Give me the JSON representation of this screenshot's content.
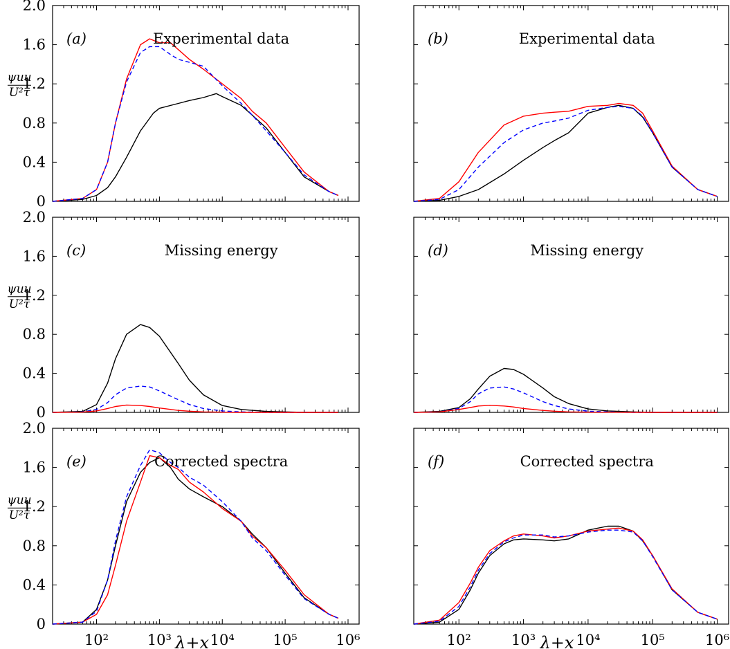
{
  "colors": {
    "black": "#000000",
    "red": "#ff0000",
    "blue": "#0000ff"
  },
  "chart_data": [
    {
      "type": "line",
      "panel": "(a)",
      "title": "Experimental data",
      "xscale": "log",
      "xlim": [
        20,
        1500000
      ],
      "ylim": [
        0,
        2.0
      ],
      "yticks": [
        "0",
        "0.4",
        "0.8",
        "1.2",
        "1.6",
        "2.0"
      ],
      "ylabel": [
        "ψuu",
        "U²τ"
      ],
      "series": [
        {
          "color": "black",
          "style": "solid",
          "x": [
            20,
            60,
            100,
            150,
            200,
            300,
            500,
            800,
            1000,
            2000,
            3000,
            5000,
            8000,
            10000,
            20000,
            30000,
            50000,
            100000,
            200000,
            500000,
            700000
          ],
          "y": [
            0,
            0.02,
            0.06,
            0.14,
            0.25,
            0.45,
            0.72,
            0.9,
            0.95,
            1.0,
            1.03,
            1.06,
            1.1,
            1.07,
            0.98,
            0.88,
            0.75,
            0.5,
            0.25,
            0.1,
            0.06
          ]
        },
        {
          "color": "red",
          "style": "solid",
          "x": [
            20,
            60,
            100,
            150,
            200,
            300,
            500,
            700,
            1000,
            1500,
            2000,
            3000,
            5000,
            10000,
            20000,
            30000,
            50000,
            100000,
            200000,
            500000,
            700000
          ],
          "y": [
            0,
            0.03,
            0.12,
            0.4,
            0.8,
            1.25,
            1.6,
            1.66,
            1.62,
            1.62,
            1.55,
            1.45,
            1.35,
            1.2,
            1.05,
            0.92,
            0.8,
            0.55,
            0.3,
            0.1,
            0.06
          ]
        },
        {
          "color": "blue",
          "style": "dashed",
          "x": [
            20,
            60,
            100,
            150,
            200,
            300,
            500,
            700,
            1000,
            1500,
            2000,
            3000,
            5000,
            10000,
            20000,
            30000,
            50000,
            100000,
            200000,
            500000,
            700000
          ],
          "y": [
            0,
            0.03,
            0.12,
            0.4,
            0.8,
            1.22,
            1.52,
            1.58,
            1.58,
            1.5,
            1.45,
            1.42,
            1.38,
            1.18,
            1.0,
            0.88,
            0.72,
            0.5,
            0.27,
            0.1,
            0.06
          ]
        }
      ]
    },
    {
      "type": "line",
      "panel": "(b)",
      "title": "Experimental data",
      "xscale": "log",
      "xlim": [
        20,
        1500000
      ],
      "ylim": [
        0,
        2.0
      ],
      "series": [
        {
          "color": "black",
          "style": "solid",
          "x": [
            20,
            50,
            100,
            200,
            500,
            1000,
            2000,
            3000,
            5000,
            10000,
            20000,
            30000,
            50000,
            70000,
            100000,
            200000,
            500000,
            1000000
          ],
          "y": [
            0,
            0.01,
            0.05,
            0.12,
            0.28,
            0.42,
            0.55,
            0.62,
            0.7,
            0.9,
            0.96,
            0.98,
            0.95,
            0.86,
            0.7,
            0.35,
            0.12,
            0.05
          ]
        },
        {
          "color": "red",
          "style": "solid",
          "x": [
            20,
            50,
            100,
            200,
            500,
            1000,
            2000,
            3000,
            5000,
            10000,
            20000,
            30000,
            50000,
            70000,
            100000,
            200000,
            500000,
            1000000
          ],
          "y": [
            0,
            0.03,
            0.2,
            0.5,
            0.78,
            0.87,
            0.9,
            0.91,
            0.92,
            0.97,
            0.98,
            1.0,
            0.98,
            0.9,
            0.72,
            0.36,
            0.12,
            0.05
          ]
        },
        {
          "color": "blue",
          "style": "dashed",
          "x": [
            20,
            50,
            100,
            200,
            500,
            1000,
            2000,
            3000,
            5000,
            10000,
            20000,
            30000,
            50000,
            70000,
            100000,
            200000,
            500000,
            1000000
          ],
          "y": [
            0,
            0.02,
            0.12,
            0.35,
            0.6,
            0.73,
            0.8,
            0.82,
            0.85,
            0.93,
            0.96,
            0.97,
            0.95,
            0.87,
            0.7,
            0.35,
            0.12,
            0.05
          ]
        }
      ]
    },
    {
      "type": "line",
      "panel": "(c)",
      "title": "Missing energy",
      "xscale": "log",
      "xlim": [
        20,
        1500000
      ],
      "ylim": [
        0,
        2.0
      ],
      "yticks": [
        "0",
        "0.4",
        "0.8",
        "1.2",
        "1.6",
        "2.0"
      ],
      "ylabel": [
        "ψuu",
        "U²τ"
      ],
      "series": [
        {
          "color": "black",
          "style": "solid",
          "x": [
            20,
            60,
            100,
            150,
            200,
            300,
            500,
            700,
            1000,
            2000,
            3000,
            5000,
            10000,
            20000,
            50000,
            100000,
            200000,
            700000
          ],
          "y": [
            0,
            0.01,
            0.08,
            0.3,
            0.55,
            0.8,
            0.9,
            0.87,
            0.78,
            0.5,
            0.33,
            0.18,
            0.07,
            0.03,
            0.01,
            0.005,
            0,
            0
          ]
        },
        {
          "color": "blue",
          "style": "dashed",
          "x": [
            20,
            60,
            100,
            150,
            200,
            300,
            500,
            700,
            1000,
            2000,
            3000,
            5000,
            10000,
            20000,
            50000,
            100000,
            700000
          ],
          "y": [
            0,
            0.005,
            0.03,
            0.1,
            0.18,
            0.25,
            0.27,
            0.26,
            0.22,
            0.13,
            0.08,
            0.04,
            0.015,
            0.005,
            0,
            0,
            0
          ]
        },
        {
          "color": "red",
          "style": "solid",
          "x": [
            20,
            60,
            100,
            150,
            200,
            300,
            500,
            700,
            1000,
            2000,
            3000,
            5000,
            10000,
            20000,
            100000,
            700000
          ],
          "y": [
            0,
            0.003,
            0.015,
            0.04,
            0.06,
            0.075,
            0.07,
            0.06,
            0.045,
            0.02,
            0.012,
            0.005,
            0.002,
            0,
            0,
            0
          ]
        }
      ]
    },
    {
      "type": "line",
      "panel": "(d)",
      "title": "Missing energy",
      "xscale": "log",
      "xlim": [
        20,
        1500000
      ],
      "ylim": [
        0,
        2.0
      ],
      "series": [
        {
          "color": "black",
          "style": "solid",
          "x": [
            20,
            50,
            100,
            150,
            200,
            300,
            500,
            700,
            1000,
            2000,
            3000,
            5000,
            10000,
            20000,
            50000,
            100000,
            1000000
          ],
          "y": [
            0,
            0.01,
            0.05,
            0.14,
            0.24,
            0.37,
            0.45,
            0.44,
            0.39,
            0.25,
            0.16,
            0.09,
            0.035,
            0.015,
            0.005,
            0,
            0
          ]
        },
        {
          "color": "blue",
          "style": "dashed",
          "x": [
            20,
            50,
            100,
            150,
            200,
            300,
            500,
            700,
            1000,
            2000,
            3000,
            5000,
            10000,
            20000,
            50000,
            100000,
            1000000
          ],
          "y": [
            0,
            0.005,
            0.04,
            0.11,
            0.19,
            0.25,
            0.26,
            0.24,
            0.2,
            0.11,
            0.07,
            0.035,
            0.012,
            0.005,
            0,
            0,
            0
          ]
        },
        {
          "color": "red",
          "style": "solid",
          "x": [
            20,
            50,
            100,
            150,
            200,
            300,
            500,
            700,
            1000,
            2000,
            3000,
            5000,
            10000,
            100000,
            1000000
          ],
          "y": [
            0,
            0.005,
            0.03,
            0.05,
            0.065,
            0.072,
            0.065,
            0.055,
            0.04,
            0.02,
            0.012,
            0.005,
            0.002,
            0,
            0
          ]
        }
      ]
    },
    {
      "type": "line",
      "panel": "(e)",
      "title": "Corrected spectra",
      "xscale": "log",
      "xlim": [
        20,
        1500000
      ],
      "ylim": [
        0,
        2.0
      ],
      "yticks": [
        "0",
        "0.4",
        "0.8",
        "1.2",
        "1.6",
        "2.0"
      ],
      "ylabel": [
        "ψuu",
        "U²τ"
      ],
      "xticks": [
        "10²",
        "10³",
        "10⁴",
        "10⁵",
        "10⁶"
      ],
      "xlabel": "λ+x",
      "series": [
        {
          "color": "black",
          "style": "solid",
          "x": [
            20,
            60,
            100,
            150,
            200,
            300,
            500,
            700,
            1000,
            1500,
            2000,
            3000,
            5000,
            10000,
            20000,
            30000,
            50000,
            100000,
            200000,
            500000,
            700000
          ],
          "y": [
            0,
            0.02,
            0.15,
            0.45,
            0.8,
            1.25,
            1.55,
            1.65,
            1.7,
            1.6,
            1.48,
            1.38,
            1.3,
            1.2,
            1.05,
            0.92,
            0.78,
            0.52,
            0.27,
            0.1,
            0.06
          ]
        },
        {
          "color": "red",
          "style": "solid",
          "x": [
            20,
            60,
            100,
            150,
            200,
            300,
            500,
            700,
            1000,
            1500,
            2000,
            3000,
            5000,
            10000,
            20000,
            30000,
            50000,
            100000,
            200000,
            500000,
            700000
          ],
          "y": [
            0,
            0.02,
            0.1,
            0.3,
            0.6,
            1.05,
            1.45,
            1.72,
            1.7,
            1.62,
            1.58,
            1.45,
            1.35,
            1.18,
            1.05,
            0.9,
            0.78,
            0.55,
            0.3,
            0.1,
            0.06
          ]
        },
        {
          "color": "blue",
          "style": "dashed",
          "x": [
            20,
            60,
            100,
            150,
            200,
            300,
            500,
            700,
            1000,
            1500,
            2000,
            3000,
            5000,
            10000,
            20000,
            30000,
            50000,
            100000,
            200000,
            500000,
            700000
          ],
          "y": [
            0,
            0.02,
            0.13,
            0.45,
            0.85,
            1.3,
            1.62,
            1.78,
            1.75,
            1.65,
            1.6,
            1.5,
            1.42,
            1.25,
            1.05,
            0.88,
            0.75,
            0.5,
            0.26,
            0.1,
            0.06
          ]
        }
      ]
    },
    {
      "type": "line",
      "panel": "(f)",
      "title": "Corrected spectra",
      "xscale": "log",
      "xlim": [
        20,
        1500000
      ],
      "ylim": [
        0,
        2.0
      ],
      "xticks": [
        "10²",
        "10³",
        "10⁴",
        "10⁵",
        "10⁶"
      ],
      "xlabel": "λ+x",
      "series": [
        {
          "color": "black",
          "style": "solid",
          "x": [
            20,
            50,
            100,
            150,
            200,
            300,
            500,
            700,
            1000,
            2000,
            3000,
            5000,
            10000,
            20000,
            30000,
            50000,
            70000,
            100000,
            200000,
            500000,
            1000000
          ],
          "y": [
            0,
            0.02,
            0.15,
            0.35,
            0.52,
            0.7,
            0.82,
            0.86,
            0.87,
            0.86,
            0.85,
            0.87,
            0.96,
            1.0,
            1.0,
            0.95,
            0.85,
            0.7,
            0.35,
            0.12,
            0.05
          ]
        },
        {
          "color": "red",
          "style": "solid",
          "x": [
            20,
            50,
            100,
            150,
            200,
            300,
            500,
            700,
            1000,
            2000,
            3000,
            5000,
            10000,
            20000,
            30000,
            50000,
            70000,
            100000,
            200000,
            500000,
            1000000
          ],
          "y": [
            0,
            0.04,
            0.22,
            0.42,
            0.58,
            0.75,
            0.85,
            0.9,
            0.92,
            0.9,
            0.88,
            0.9,
            0.95,
            0.97,
            0.98,
            0.95,
            0.86,
            0.7,
            0.36,
            0.12,
            0.05
          ]
        },
        {
          "color": "blue",
          "style": "dashed",
          "x": [
            20,
            50,
            100,
            150,
            200,
            300,
            500,
            700,
            1000,
            2000,
            3000,
            5000,
            10000,
            20000,
            30000,
            50000,
            70000,
            100000,
            200000,
            500000,
            1000000
          ],
          "y": [
            0,
            0.03,
            0.18,
            0.38,
            0.55,
            0.72,
            0.84,
            0.88,
            0.91,
            0.91,
            0.89,
            0.9,
            0.94,
            0.96,
            0.96,
            0.94,
            0.85,
            0.69,
            0.35,
            0.12,
            0.05
          ]
        }
      ]
    }
  ]
}
